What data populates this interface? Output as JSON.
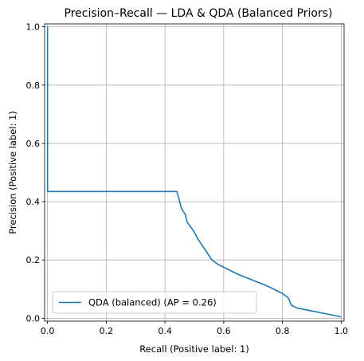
{
  "chart_data": {
    "type": "line",
    "title": "Precision–Recall — LDA & QDA (Balanced Priors)",
    "xlabel": "Recall (Positive label: 1)",
    "ylabel": "Precision (Positive label: 1)",
    "xlim": [
      -0.01,
      1.01
    ],
    "ylim": [
      -0.01,
      1.01
    ],
    "xticks": [
      0.0,
      0.2,
      0.4,
      0.6,
      0.8,
      1.0
    ],
    "yticks": [
      0.0,
      0.2,
      0.4,
      0.6,
      0.8,
      1.0
    ],
    "xtick_labels": [
      "0.0",
      "0.2",
      "0.4",
      "0.6",
      "0.8",
      "1.0"
    ],
    "ytick_labels": [
      "0.0",
      "0.2",
      "0.4",
      "0.6",
      "0.8",
      "1.0"
    ],
    "grid": true,
    "legend_position": "lower-left",
    "series": [
      {
        "name": "QDA (balanced) (AP = 0.26)",
        "color": "#1f77b4",
        "points": [
          [
            0.0,
            1.0
          ],
          [
            0.0,
            0.435
          ],
          [
            0.44,
            0.435
          ],
          [
            0.445,
            0.42
          ],
          [
            0.45,
            0.4
          ],
          [
            0.455,
            0.38
          ],
          [
            0.46,
            0.37
          ],
          [
            0.47,
            0.355
          ],
          [
            0.475,
            0.33
          ],
          [
            0.49,
            0.31
          ],
          [
            0.5,
            0.295
          ],
          [
            0.51,
            0.275
          ],
          [
            0.52,
            0.26
          ],
          [
            0.53,
            0.245
          ],
          [
            0.54,
            0.23
          ],
          [
            0.55,
            0.215
          ],
          [
            0.56,
            0.2
          ],
          [
            0.58,
            0.185
          ],
          [
            0.6,
            0.175
          ],
          [
            0.62,
            0.165
          ],
          [
            0.65,
            0.15
          ],
          [
            0.7,
            0.13
          ],
          [
            0.75,
            0.11
          ],
          [
            0.8,
            0.085
          ],
          [
            0.82,
            0.07
          ],
          [
            0.83,
            0.045
          ],
          [
            0.85,
            0.035
          ],
          [
            0.9,
            0.025
          ],
          [
            0.95,
            0.015
          ],
          [
            1.0,
            0.005
          ]
        ]
      }
    ]
  }
}
